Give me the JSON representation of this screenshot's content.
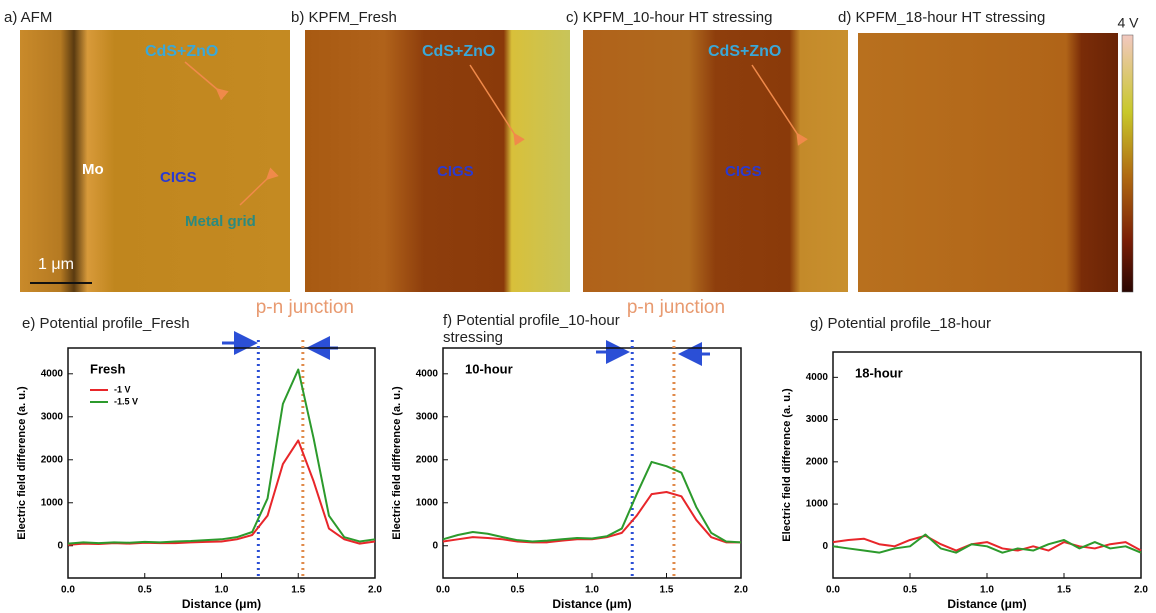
{
  "panels": [
    {
      "label": "a) AFM",
      "annotations": [
        "CdS+ZnO",
        "Mo",
        "CIGS",
        "Metal grid",
        "1 μm"
      ]
    },
    {
      "label": "b) KPFM_Fresh",
      "annotations": [
        "CdS+ZnO",
        "CIGS"
      ]
    },
    {
      "label": "c) KPFM_10-hour HT stressing",
      "annotations": [
        "CdS+ZnO",
        "CIGS"
      ]
    },
    {
      "label": "d) KPFM_18-hour HT stressing",
      "annotations": []
    }
  ],
  "colorbar_label": "4 V",
  "chart_data": [
    {
      "type": "line",
      "title": "e) Potential profile_Fresh",
      "top_label": "p-n junction",
      "annotation": "Fresh",
      "x_label": "Distance (μm)",
      "y_label": "Electric field difference (a. u.)",
      "x": [
        0,
        0.1,
        0.2,
        0.3,
        0.4,
        0.5,
        0.6,
        0.7,
        0.8,
        0.9,
        1,
        1.1,
        1.2,
        1.3,
        1.4,
        1.5,
        1.6,
        1.7,
        1.8,
        1.9,
        2
      ],
      "series": [
        {
          "name": "-1 V",
          "color": "#e8262a",
          "values": [
            20,
            50,
            40,
            60,
            50,
            70,
            60,
            60,
            80,
            90,
            100,
            150,
            250,
            700,
            1900,
            2450,
            1500,
            400,
            150,
            50,
            100
          ]
        },
        {
          "name": "-1.5 V",
          "color": "#2c9a2c",
          "values": [
            50,
            80,
            60,
            80,
            70,
            90,
            80,
            100,
            110,
            130,
            150,
            200,
            320,
            1100,
            3300,
            4100,
            2500,
            700,
            200,
            100,
            150
          ]
        }
      ],
      "vlines": [
        {
          "x": 1.24,
          "color": "#2b4fd6"
        },
        {
          "x": 1.53,
          "color": "#e08a4a"
        }
      ],
      "legend": true,
      "legend_position": "upper left",
      "xlim": [
        0,
        2
      ],
      "xticks": [
        {
          "value": 0,
          "label": "0.0"
        },
        0.5,
        {
          "value": 1,
          "label": "1.0"
        },
        1.5,
        {
          "value": 2,
          "label": "2.0"
        }
      ],
      "ylim": [
        -750,
        4600
      ],
      "yticks": [
        0,
        1000,
        2000,
        3000,
        4000
      ]
    },
    {
      "type": "line",
      "title": "f) Potential profile_10-hour stressing",
      "top_label": "p-n junction",
      "annotation": "10-hour",
      "x_label": "Distance (μm)",
      "y_label": "Electric field difference (a. u.)",
      "x": [
        0,
        0.1,
        0.2,
        0.3,
        0.4,
        0.5,
        0.6,
        0.7,
        0.8,
        0.9,
        1,
        1.1,
        1.2,
        1.3,
        1.4,
        1.5,
        1.6,
        1.7,
        1.8,
        1.9,
        2
      ],
      "series": [
        {
          "name": "-1 V",
          "color": "#e8262a",
          "values": [
            100,
            150,
            200,
            180,
            150,
            100,
            80,
            80,
            120,
            150,
            150,
            200,
            300,
            700,
            1200,
            1250,
            1150,
            600,
            200,
            80,
            80
          ]
        },
        {
          "name": "-1.5 V",
          "color": "#2c9a2c",
          "values": [
            150,
            250,
            320,
            280,
            200,
            130,
            100,
            120,
            150,
            180,
            170,
            220,
            400,
            1200,
            1950,
            1850,
            1700,
            900,
            300,
            100,
            80
          ]
        }
      ],
      "vlines": [
        {
          "x": 1.27,
          "color": "#2b4fd6"
        },
        {
          "x": 1.55,
          "color": "#e08a4a"
        }
      ],
      "legend": false,
      "xlim": [
        0,
        2
      ],
      "xticks": [
        {
          "value": 0,
          "label": "0.0"
        },
        0.5,
        {
          "value": 1,
          "label": "1.0"
        },
        1.5,
        {
          "value": 2,
          "label": "2.0"
        }
      ],
      "ylim": [
        -750,
        4600
      ],
      "yticks": [
        0,
        1000,
        2000,
        3000,
        4000
      ]
    },
    {
      "type": "line",
      "title": "g) Potential profile_18-hour",
      "annotation": "18-hour",
      "x_label": "Distance (μm)",
      "y_label": "Electric field difference (a. u.)",
      "x": [
        0,
        0.1,
        0.2,
        0.3,
        0.4,
        0.5,
        0.6,
        0.7,
        0.8,
        0.9,
        1,
        1.1,
        1.2,
        1.3,
        1.4,
        1.5,
        1.6,
        1.7,
        1.8,
        1.9,
        2
      ],
      "series": [
        {
          "name": "-1 V",
          "color": "#e8262a",
          "values": [
            100,
            150,
            180,
            50,
            0,
            150,
            250,
            50,
            -100,
            50,
            100,
            -50,
            -100,
            0,
            -100,
            100,
            0,
            -50,
            50,
            100,
            -100
          ]
        },
        {
          "name": "-1.5 V",
          "color": "#2c9a2c",
          "values": [
            0,
            -50,
            -100,
            -150,
            -50,
            0,
            280,
            -50,
            -150,
            50,
            0,
            -150,
            -50,
            -100,
            50,
            150,
            -50,
            100,
            -50,
            0,
            -150
          ]
        }
      ],
      "vlines": [],
      "legend": false,
      "xlim": [
        0,
        2
      ],
      "xticks": [
        {
          "value": 0,
          "label": "0.0"
        },
        0.5,
        {
          "value": 1,
          "label": "1.0"
        },
        1.5,
        {
          "value": 2,
          "label": "2.0"
        }
      ],
      "ylim": [
        -750,
        4600
      ],
      "yticks": [
        0,
        1000,
        2000,
        3000,
        4000
      ]
    }
  ]
}
